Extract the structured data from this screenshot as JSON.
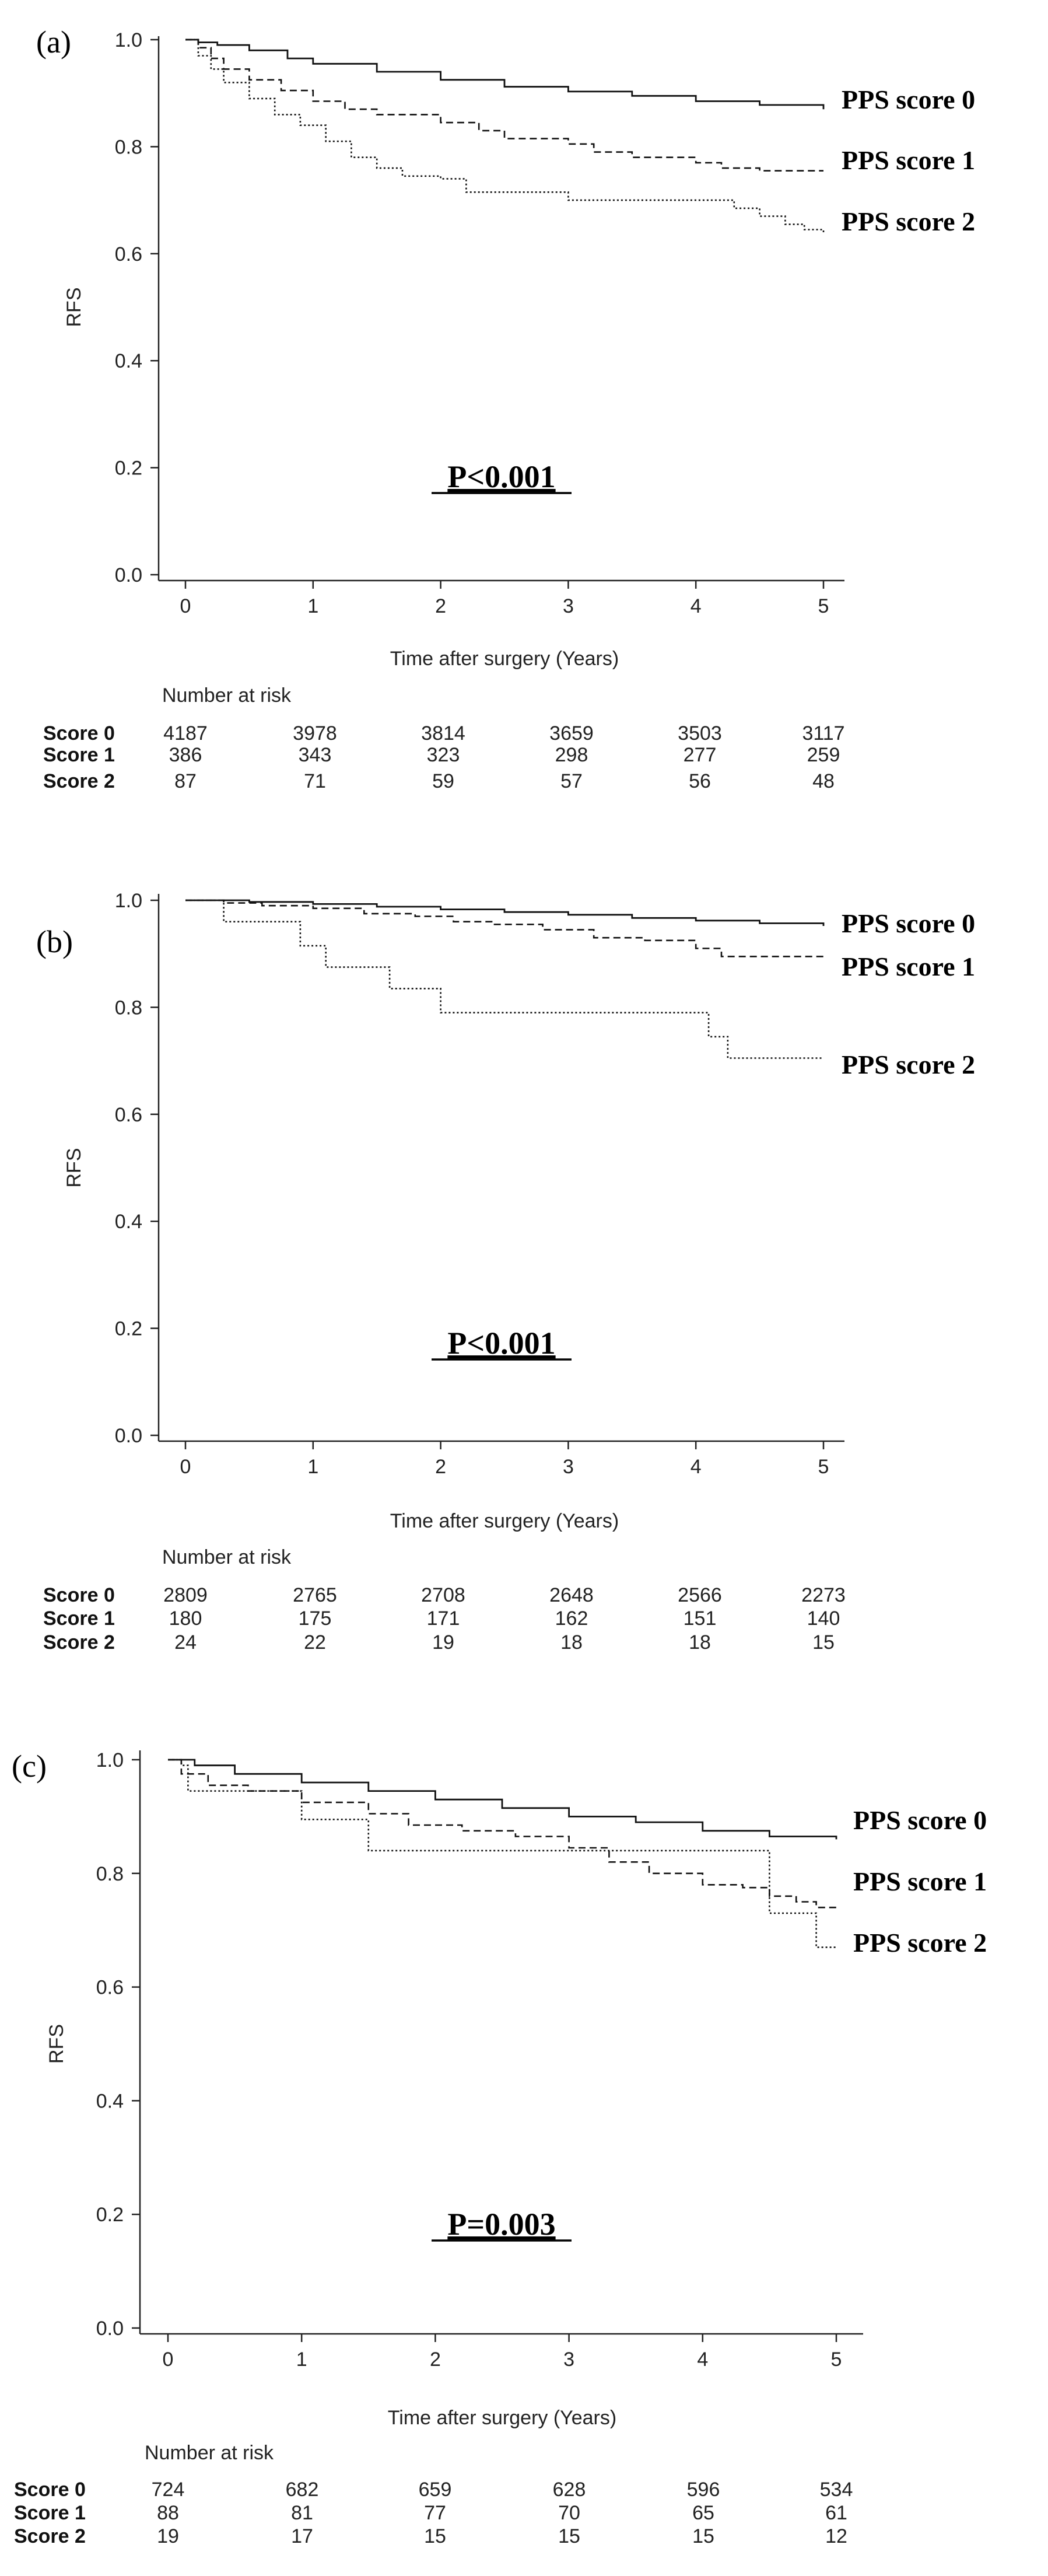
{
  "chart_data": [
    {
      "type": "line",
      "panel_label": "(a)",
      "ylabel": "RFS",
      "xlabel": "Time after surgery (Years)",
      "xlim": [
        0,
        5
      ],
      "ylim": [
        0,
        1
      ],
      "x_ticks": [
        "0",
        "1",
        "2",
        "3",
        "4",
        "5"
      ],
      "y_ticks": [
        "0.0",
        "0.2",
        "0.4",
        "0.6",
        "0.8",
        "1.0"
      ],
      "annotation": "P<0.001",
      "series": [
        {
          "name": "PPS score 0",
          "style": "solid",
          "label": "PPS score 0",
          "x": [
            0,
            0.1,
            0.25,
            0.5,
            0.8,
            1,
            1.5,
            2,
            2.5,
            3,
            3.5,
            4,
            4.5,
            5
          ],
          "y": [
            1,
            0.995,
            0.99,
            0.98,
            0.965,
            0.955,
            0.94,
            0.925,
            0.912,
            0.903,
            0.895,
            0.885,
            0.878,
            0.87
          ]
        },
        {
          "name": "PPS score 1",
          "style": "dashed",
          "label": "PPS score 1",
          "x": [
            0,
            0.1,
            0.2,
            0.3,
            0.5,
            0.75,
            1,
            1.25,
            1.5,
            2,
            2.3,
            2.5,
            3,
            3.2,
            3.5,
            4,
            4.2,
            4.5,
            5
          ],
          "y": [
            1,
            0.985,
            0.965,
            0.945,
            0.925,
            0.905,
            0.885,
            0.87,
            0.86,
            0.845,
            0.83,
            0.815,
            0.805,
            0.79,
            0.78,
            0.77,
            0.76,
            0.755,
            0.755
          ]
        },
        {
          "name": "PPS score 2",
          "style": "dotted",
          "label": "PPS score 2",
          "x": [
            0,
            0.1,
            0.2,
            0.3,
            0.5,
            0.7,
            0.9,
            1.1,
            1.3,
            1.5,
            1.7,
            2,
            2.2,
            2.5,
            3,
            3.5,
            4,
            4.3,
            4.5,
            4.7,
            4.85,
            5
          ],
          "y": [
            1,
            0.97,
            0.945,
            0.92,
            0.89,
            0.86,
            0.84,
            0.81,
            0.78,
            0.76,
            0.745,
            0.74,
            0.715,
            0.715,
            0.7,
            0.7,
            0.7,
            0.685,
            0.67,
            0.655,
            0.645,
            0.64
          ]
        }
      ],
      "risk_table": {
        "title": "Number at risk",
        "rows": [
          {
            "label": "Score 0",
            "values": [
              "4187",
              "3978",
              "3814",
              "3659",
              "3503",
              "3117"
            ]
          },
          {
            "label": "Score 1",
            "values": [
              "386",
              "343",
              "323",
              "298",
              "277",
              "259"
            ]
          },
          {
            "label": "Score 2",
            "values": [
              "87",
              "71",
              "59",
              "57",
              "56",
              "48"
            ]
          }
        ]
      }
    },
    {
      "type": "line",
      "panel_label": "(b)",
      "ylabel": "RFS",
      "xlabel": "Time after surgery (Years)",
      "xlim": [
        0,
        5
      ],
      "ylim": [
        0,
        1
      ],
      "x_ticks": [
        "0",
        "1",
        "2",
        "3",
        "4",
        "5"
      ],
      "y_ticks": [
        "0.0",
        "0.2",
        "0.4",
        "0.6",
        "0.8",
        "1.0"
      ],
      "annotation": "P<0.001",
      "series": [
        {
          "name": "PPS score 0",
          "style": "solid",
          "label": "PPS score 0",
          "x": [
            0,
            0.5,
            1,
            1.5,
            2,
            2.5,
            3,
            3.5,
            4,
            4.5,
            5
          ],
          "y": [
            1,
            0.997,
            0.993,
            0.988,
            0.983,
            0.978,
            0.973,
            0.967,
            0.962,
            0.957,
            0.952
          ]
        },
        {
          "name": "PPS score 1",
          "style": "dashed",
          "label": "PPS score 1",
          "x": [
            0,
            0.3,
            0.6,
            1,
            1.4,
            1.8,
            2.1,
            2.4,
            2.8,
            3.2,
            3.6,
            4,
            4.2,
            5
          ],
          "y": [
            1,
            0.995,
            0.99,
            0.985,
            0.975,
            0.97,
            0.96,
            0.955,
            0.945,
            0.93,
            0.925,
            0.91,
            0.895,
            0.895
          ]
        },
        {
          "name": "PPS score 2",
          "style": "dotted",
          "label": "PPS score 2",
          "x": [
            0,
            0.3,
            0.9,
            1.1,
            1.6,
            2,
            4.1,
            4.25,
            5
          ],
          "y": [
            1,
            0.96,
            0.915,
            0.875,
            0.835,
            0.79,
            0.745,
            0.705,
            0.705
          ]
        }
      ],
      "risk_table": {
        "title": "Number at risk",
        "rows": [
          {
            "label": "Score 0",
            "values": [
              "2809",
              "2765",
              "2708",
              "2648",
              "2566",
              "2273"
            ]
          },
          {
            "label": "Score 1",
            "values": [
              "180",
              "175",
              "171",
              "162",
              "151",
              "140"
            ]
          },
          {
            "label": "Score 2",
            "values": [
              "24",
              "22",
              "19",
              "18",
              "18",
              "15"
            ]
          }
        ]
      }
    },
    {
      "type": "line",
      "panel_label": "(c)",
      "ylabel": "RFS",
      "xlabel": "Time after surgery (Years)",
      "xlim": [
        0,
        5
      ],
      "ylim": [
        0,
        1
      ],
      "x_ticks": [
        "0",
        "1",
        "2",
        "3",
        "4",
        "5"
      ],
      "y_ticks": [
        "0.0",
        "0.2",
        "0.4",
        "0.6",
        "0.8",
        "1.0"
      ],
      "annotation": "P=0.003",
      "series": [
        {
          "name": "PPS score 0",
          "style": "solid",
          "label": "PPS score 0",
          "x": [
            0,
            0.2,
            0.5,
            1,
            1.5,
            2,
            2.5,
            3,
            3.5,
            4,
            4.5,
            5
          ],
          "y": [
            1,
            0.99,
            0.975,
            0.96,
            0.945,
            0.93,
            0.915,
            0.9,
            0.89,
            0.875,
            0.865,
            0.86
          ]
        },
        {
          "name": "PPS score 1",
          "style": "dashed",
          "label": "PPS score 1",
          "x": [
            0,
            0.1,
            0.3,
            0.6,
            1,
            1.5,
            1.8,
            2.2,
            2.6,
            3,
            3.3,
            3.6,
            4,
            4.3,
            4.5,
            4.7,
            4.85,
            5
          ],
          "y": [
            1,
            0.975,
            0.955,
            0.945,
            0.925,
            0.905,
            0.885,
            0.875,
            0.865,
            0.845,
            0.82,
            0.8,
            0.78,
            0.775,
            0.76,
            0.75,
            0.74,
            0.74
          ]
        },
        {
          "name": "PPS score 2",
          "style": "dotted",
          "label": "PPS score 2",
          "x": [
            0,
            0.1,
            0.15,
            0.8,
            1,
            1.5,
            2,
            3,
            4,
            4.45,
            4.5,
            4.85,
            5
          ],
          "y": [
            1,
            0.99,
            0.945,
            0.945,
            0.895,
            0.84,
            0.84,
            0.84,
            0.84,
            0.84,
            0.73,
            0.67,
            0.67
          ]
        }
      ],
      "risk_table": {
        "title": "Number at risk",
        "rows": [
          {
            "label": "Score 0",
            "values": [
              "724",
              "682",
              "659",
              "628",
              "596",
              "534"
            ]
          },
          {
            "label": "Score 1",
            "values": [
              "88",
              "81",
              "77",
              "70",
              "65",
              "61"
            ]
          },
          {
            "label": "Score 2",
            "values": [
              "19",
              "17",
              "15",
              "15",
              "15",
              "12"
            ]
          }
        ]
      }
    }
  ]
}
